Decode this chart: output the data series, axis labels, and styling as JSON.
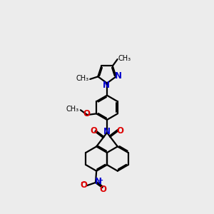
{
  "bg": "#ececec",
  "bc": "#000000",
  "nc": "#0000cc",
  "oc": "#dd0000",
  "lw": 1.6,
  "fs": 8.5,
  "xlim": [
    1.0,
    9.0
  ],
  "ylim": [
    0.0,
    12.5
  ]
}
